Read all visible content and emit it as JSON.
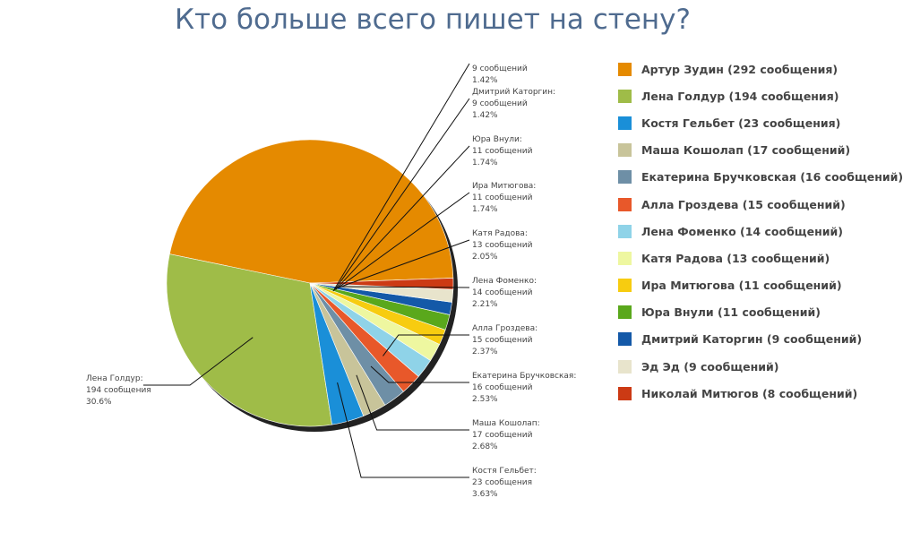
{
  "chart_data": {
    "type": "pie",
    "title": "Кто больше всего пишет на стену?",
    "slices": [
      {
        "name": "Артур Зудин",
        "value": 292,
        "legend": "Артур Зудин (292 сообщения)",
        "color": "#e58a00",
        "callout": null
      },
      {
        "name": "Лена Голдур",
        "value": 194,
        "legend": "Лена Голдур (194 сообщения)",
        "color": "#9fbc48",
        "callout": {
          "name": "Лена Голдур:",
          "count": "194 сообщения",
          "pct": "30.6%"
        }
      },
      {
        "name": "Костя Гельбет",
        "value": 23,
        "legend": "Костя Гельбет (23 сообщения)",
        "color": "#1a8fd8",
        "callout": {
          "name": "Костя Гельбет:",
          "count": "23 сообщения",
          "pct": "3.63%"
        }
      },
      {
        "name": "Маша Кошолап",
        "value": 17,
        "legend": "Маша Кошолап (17 сообщений)",
        "color": "#c8c49a",
        "callout": {
          "name": "Маша Кошолап:",
          "count": "17 сообщений",
          "pct": "2.68%"
        }
      },
      {
        "name": "Екатерина Бручковская",
        "value": 16,
        "legend": "Екатерина Бручковская (16 сообщений)",
        "color": "#6e8fa6",
        "callout": {
          "name": "Екатерина Бручковская:",
          "count": "16 сообщений",
          "pct": "2.53%"
        }
      },
      {
        "name": "Алла Гроздева",
        "value": 15,
        "legend": "Алла Гроздева (15 сообщений)",
        "color": "#e8582a",
        "callout": {
          "name": "Алла Гроздева:",
          "count": "15 сообщений",
          "pct": "2.37%"
        }
      },
      {
        "name": "Лена Фоменко",
        "value": 14,
        "legend": "Лена Фоменко (14 сообщений)",
        "color": "#8fd3e8",
        "callout": {
          "name": "Лена Фоменко:",
          "count": "14 сообщений",
          "pct": "2.21%"
        }
      },
      {
        "name": "Катя Радова",
        "value": 13,
        "legend": "Катя Радова (13 сообщений)",
        "color": "#eef7a0",
        "callout": {
          "name": "Катя Радова:",
          "count": "13 сообщений",
          "pct": "2.05%"
        }
      },
      {
        "name": "Ира Митюгова",
        "value": 11,
        "legend": "Ира Митюгова (11 сообщений)",
        "color": "#f7cc10",
        "callout": {
          "name": "Ира Митюгова:",
          "count": "11 сообщений",
          "pct": "1.74%"
        }
      },
      {
        "name": "Юра Внули",
        "value": 11,
        "legend": "Юра Внули (11 сообщений)",
        "color": "#5aa81c",
        "callout": {
          "name": "Юра Внули:",
          "count": "11 сообщений",
          "pct": "1.74%"
        }
      },
      {
        "name": "Дмитрий Каторгин",
        "value": 9,
        "legend": "Дмитрий Каторгин (9 сообщений)",
        "color": "#1459a8",
        "callout": {
          "name": "Дмитрий Каторгин:",
          "count": "9 сообщений",
          "pct": "1.42%"
        }
      },
      {
        "name": "Эд Эд",
        "value": 9,
        "legend": "Эд Эд (9 сообщений)",
        "color": "#e8e4cc",
        "callout": {
          "name": "",
          "count": "9 сообщений",
          "pct": "1.42%"
        }
      },
      {
        "name": "Николай Митюгов",
        "value": 8,
        "legend": "Николай Митюгов (8 сообщений)",
        "color": "#cc3a14",
        "callout": null
      }
    ],
    "legend_position": "right"
  }
}
